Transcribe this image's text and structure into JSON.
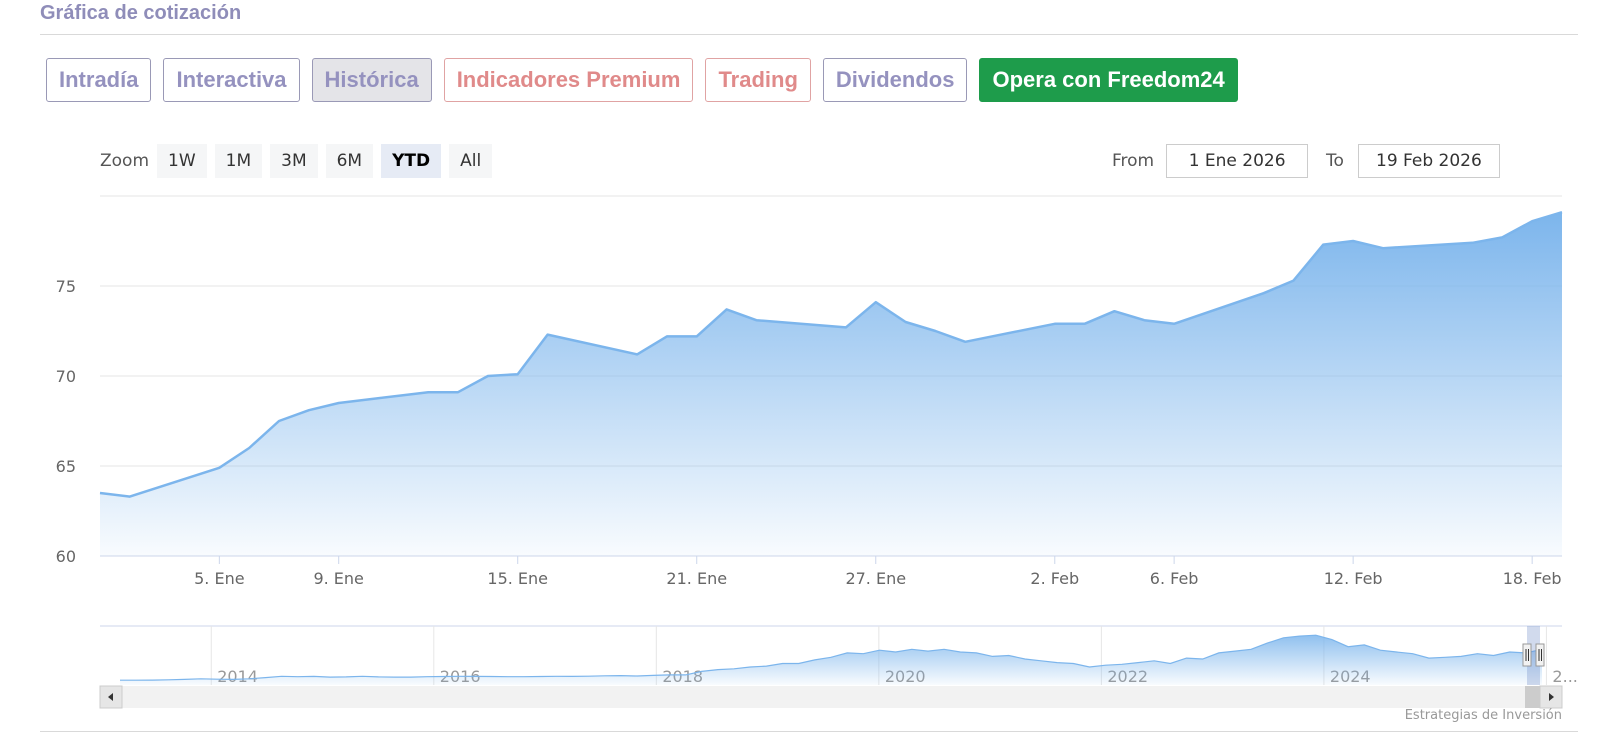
{
  "section": {
    "title": "Gráfica de cotización"
  },
  "tabs": [
    {
      "label": "Intradía",
      "style": "normal"
    },
    {
      "label": "Interactiva",
      "style": "normal"
    },
    {
      "label": "Histórica",
      "style": "active"
    },
    {
      "label": "Indicadores Premium",
      "style": "premium"
    },
    {
      "label": "Trading",
      "style": "premium"
    },
    {
      "label": "Dividendos",
      "style": "normal"
    },
    {
      "label": "Opera con Freedom24",
      "style": "green"
    }
  ],
  "zoom": {
    "label": "Zoom",
    "buttons": [
      "1W",
      "1M",
      "3M",
      "6M",
      "YTD",
      "All"
    ],
    "selected": "YTD"
  },
  "range": {
    "from_label": "From",
    "from_value": "1 Ene 2026",
    "to_label": "To",
    "to_value": "19 Feb 2026"
  },
  "credit": "Estrategias de Inversión",
  "colors": {
    "area_top": "#7cb5ec",
    "line": "#7cb5ec",
    "grid": "#e6e6e6"
  },
  "chart_data": {
    "type": "area",
    "x": [
      "2026-01-01",
      "2026-01-02",
      "2026-01-05",
      "2026-01-06",
      "2026-01-07",
      "2026-01-08",
      "2026-01-09",
      "2026-01-12",
      "2026-01-13",
      "2026-01-14",
      "2026-01-15",
      "2026-01-16",
      "2026-01-19",
      "2026-01-20",
      "2026-01-21",
      "2026-01-22",
      "2026-01-23",
      "2026-01-26",
      "2026-01-27",
      "2026-01-28",
      "2026-01-29",
      "2026-01-30",
      "2026-02-02",
      "2026-02-03",
      "2026-02-04",
      "2026-02-05",
      "2026-02-06",
      "2026-02-09",
      "2026-02-10",
      "2026-02-11",
      "2026-02-12",
      "2026-02-13",
      "2026-02-16",
      "2026-02-17",
      "2026-02-18",
      "2026-02-19"
    ],
    "values": [
      63.5,
      63.3,
      64.9,
      66.0,
      67.5,
      68.1,
      68.5,
      69.1,
      69.1,
      70.0,
      70.1,
      72.3,
      71.2,
      72.2,
      72.2,
      73.7,
      73.1,
      72.7,
      74.1,
      73.0,
      72.5,
      71.9,
      72.9,
      72.9,
      73.6,
      73.1,
      72.9,
      74.6,
      75.3,
      77.3,
      77.5,
      77.1,
      77.4,
      77.7,
      78.6,
      79.1
    ],
    "y_ticks": [
      60,
      65,
      70,
      75
    ],
    "ylim": [
      60,
      80
    ],
    "x_ticks": [
      {
        "label": "5. Ene",
        "date": "2026-01-05"
      },
      {
        "label": "9. Ene",
        "date": "2026-01-09"
      },
      {
        "label": "15. Ene",
        "date": "2026-01-15"
      },
      {
        "label": "21. Ene",
        "date": "2026-01-21"
      },
      {
        "label": "27. Ene",
        "date": "2026-01-27"
      },
      {
        "label": "2. Feb",
        "date": "2026-02-02"
      },
      {
        "label": "6. Feb",
        "date": "2026-02-06"
      },
      {
        "label": "12. Feb",
        "date": "2026-02-12"
      },
      {
        "label": "18. Feb",
        "date": "2026-02-18"
      }
    ],
    "grid": true,
    "legend": "none",
    "navigator": {
      "year_labels": [
        "2014",
        "2016",
        "2018",
        "2020",
        "2022",
        "2024",
        "2..."
      ],
      "values": [
        2,
        2,
        2.2,
        2.5,
        3,
        3.6,
        3.2,
        3,
        3.6,
        5,
        6.5,
        6,
        6.3,
        5.6,
        5.8,
        6.5,
        5.8,
        5.5,
        5.5,
        6,
        6.2,
        6.4,
        6.3,
        6.2,
        6,
        6,
        6.2,
        6.5,
        6.3,
        6.6,
        7,
        7.2,
        6.8,
        7.5,
        8,
        8,
        12,
        14,
        15,
        17,
        18,
        21,
        21,
        25,
        28,
        33,
        32,
        36,
        34,
        37,
        35,
        37,
        34,
        33,
        29,
        30,
        26,
        24,
        22,
        21,
        17,
        19,
        20,
        22,
        24,
        21,
        27,
        26,
        33,
        35,
        37,
        44,
        50,
        52,
        53,
        48,
        40,
        42,
        36,
        34,
        32,
        27,
        28,
        29,
        32,
        30,
        34,
        33,
        37
      ]
    }
  }
}
